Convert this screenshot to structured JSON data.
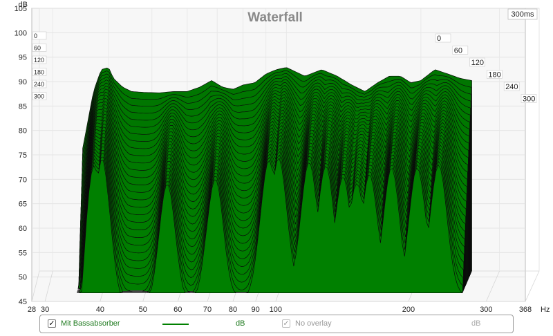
{
  "chart_data": {
    "type": "waterfall",
    "title": "Waterfall",
    "time_label": "300ms",
    "y_unit": "dB",
    "x_unit": "Hz",
    "ylim": [
      45,
      105
    ],
    "xlim": [
      28,
      368
    ],
    "x_scale": "log",
    "y_ticks": [
      45,
      50,
      55,
      60,
      65,
      70,
      75,
      80,
      85,
      90,
      95,
      100,
      105
    ],
    "x_ticks": [
      28,
      30,
      40,
      50,
      60,
      70,
      80,
      90,
      100,
      200,
      300,
      368
    ],
    "time_ticks_left": [
      "0",
      "60",
      "120",
      "180",
      "240",
      "300"
    ],
    "time_ticks_right": [
      "0",
      "60",
      "120",
      "180",
      "240",
      "300"
    ],
    "slices": 30,
    "series": [
      {
        "name": "Mit Bassabsorber",
        "color": "#008000",
        "x": [
          35,
          37,
          38.5,
          40,
          41,
          43,
          45,
          48,
          52,
          56,
          60,
          64,
          68,
          72,
          76,
          80,
          85,
          90,
          95,
          100,
          110,
          120,
          130,
          140,
          150,
          160,
          170,
          180,
          190,
          200,
          215,
          230,
          245,
          260
        ],
        "values": [
          73,
          86,
          91,
          91.5,
          89,
          87,
          86,
          85.8,
          85.7,
          86,
          86,
          87,
          88.5,
          87,
          86.5,
          87.5,
          88,
          90,
          91,
          91.5,
          89.5,
          91,
          89.5,
          87.5,
          86,
          88,
          89.5,
          89.5,
          88,
          88.5,
          91,
          90,
          89,
          88.5
        ]
      }
    ]
  },
  "legend": {
    "series_name": "Mit Bassabsorber",
    "series_checked": "✓",
    "series_unit": "dB",
    "overlay_checked": "✓",
    "overlay_label": "No overlay",
    "overlay_unit": "dB"
  }
}
